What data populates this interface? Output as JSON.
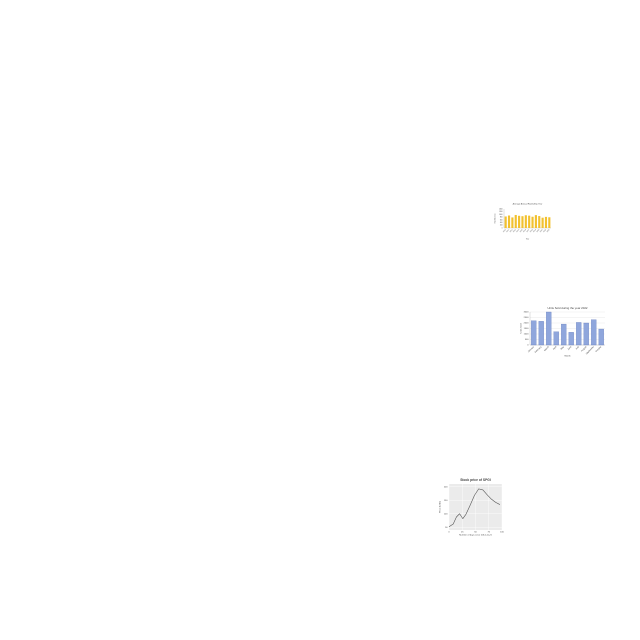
{
  "chart_data": [
    {
      "type": "bar",
      "title": "Average Annual Rainfall by Year",
      "x_label": "Year",
      "y_label": "Rainfall (mm)",
      "categories": [
        "2010",
        "2011",
        "2012",
        "2013",
        "2014",
        "2015",
        "2016",
        "2017",
        "2018",
        "2019",
        "2020",
        "2021",
        "2022",
        "2023"
      ],
      "values": [
        850,
        920,
        780,
        960,
        900,
        870,
        940,
        910,
        830,
        950,
        880,
        760,
        820,
        790
      ],
      "color": "#f2c12e",
      "ylim": [
        0,
        1400
      ],
      "yticks": [
        0,
        200,
        400,
        600,
        800,
        1000,
        1200,
        1400
      ],
      "grid": false
    },
    {
      "type": "bar",
      "title": "Units Sold during the year 2022",
      "x_label": "Month",
      "y_label": "Units Sold",
      "categories": [
        "January",
        "February",
        "March",
        "April",
        "May",
        "June",
        "July",
        "August",
        "September",
        "October"
      ],
      "values": [
        2200,
        2150,
        3000,
        1200,
        1900,
        1150,
        2050,
        2000,
        2300,
        1450
      ],
      "color": "#8fa6dc",
      "ylim": [
        0,
        3000
      ],
      "yticks": [
        0,
        500,
        1000,
        1500,
        2000,
        2500,
        3000
      ],
      "grid": true
    },
    {
      "type": "line",
      "title": "Stock price of SPGI",
      "x_label": "Number of days since 2014-11-21",
      "y_label": "Price (USD)",
      "x": [
        0,
        8,
        14,
        20,
        26,
        32,
        40,
        48,
        56,
        64,
        72,
        80,
        88,
        96
      ],
      "values": [
        52,
        62,
        88,
        100,
        82,
        98,
        132,
        168,
        192,
        188,
        170,
        154,
        142,
        134
      ],
      "color": "#555555",
      "xlim": [
        0,
        100
      ],
      "xticks": [
        0,
        25,
        50,
        75,
        100
      ],
      "ylim": [
        40,
        210
      ],
      "yticks": [
        50,
        100,
        150,
        200
      ],
      "grid": true
    }
  ]
}
